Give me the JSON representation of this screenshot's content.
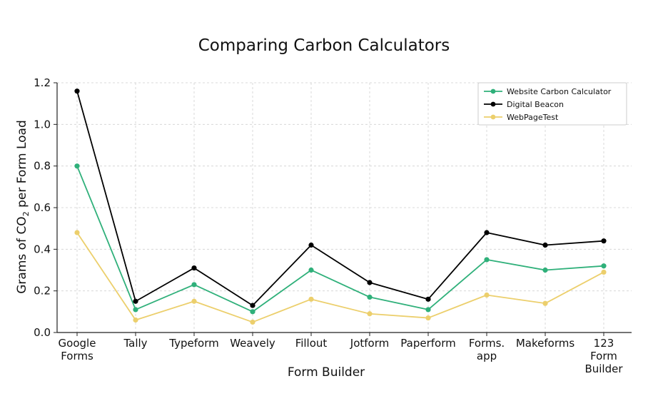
{
  "chart_data": {
    "type": "line",
    "title": "Comparing Carbon Calculators",
    "xlabel": "Form Builder",
    "ylabel_prefix": "Grams of CO",
    "ylabel_sub": "2",
    "ylabel_suffix": " per Form Load",
    "categories": [
      [
        "Google",
        "Forms"
      ],
      [
        "Tally"
      ],
      [
        "Typeform"
      ],
      [
        "Weavely"
      ],
      [
        "Fillout"
      ],
      [
        "Jotform"
      ],
      [
        "Paperform"
      ],
      [
        "Forms.",
        "app"
      ],
      [
        "Makeforms"
      ],
      [
        "123",
        "Form",
        "Builder"
      ]
    ],
    "ylim": [
      0,
      1.2
    ],
    "yticks": [
      "0.0",
      "0.2",
      "0.4",
      "0.6",
      "0.8",
      "1.0",
      "1.2"
    ],
    "grid": true,
    "legend_position": "top-right",
    "series": [
      {
        "name": "Website Carbon Calculator",
        "color": "#2fb07a",
        "values": [
          0.8,
          0.11,
          0.23,
          0.1,
          0.3,
          0.17,
          0.11,
          0.35,
          0.3,
          0.32
        ]
      },
      {
        "name": "Digital Beacon",
        "color": "#000000",
        "values": [
          1.16,
          0.15,
          0.31,
          0.13,
          0.42,
          0.24,
          0.16,
          0.48,
          0.42,
          0.44
        ]
      },
      {
        "name": "WebPageTest",
        "color": "#eccf6c",
        "values": [
          0.48,
          0.06,
          0.15,
          0.05,
          0.16,
          0.09,
          0.07,
          0.18,
          0.14,
          0.29
        ]
      }
    ]
  }
}
